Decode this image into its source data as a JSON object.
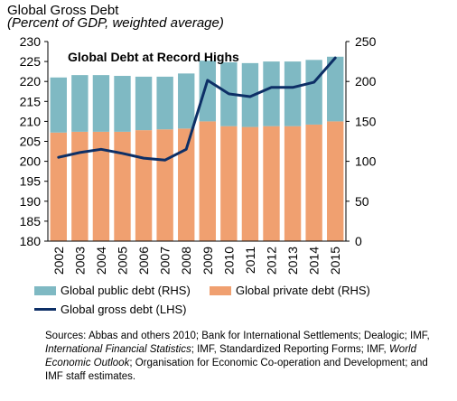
{
  "header": {
    "title": "Global Gross Debt",
    "subtitle": "(Percent of GDP, weighted average)"
  },
  "chart_data": {
    "type": "bar",
    "title": "Global Debt at Record Highs",
    "categories": [
      "2002",
      "2003",
      "2004",
      "2005",
      "2006",
      "2007",
      "2008",
      "2009",
      "2010",
      "2011",
      "2012",
      "2013",
      "2014",
      "2015"
    ],
    "axes": {
      "left": {
        "min": 180,
        "max": 230,
        "step": 5,
        "ticks": [
          "180",
          "185",
          "190",
          "195",
          "200",
          "205",
          "210",
          "215",
          "220",
          "225",
          "230"
        ]
      },
      "right": {
        "min": 0,
        "max": 250,
        "step": 50,
        "ticks": [
          "0",
          "50",
          "100",
          "150",
          "200",
          "250"
        ]
      }
    },
    "series": [
      {
        "name": "Global private debt (RHS)",
        "type": "bar",
        "axis": "right",
        "stacked": true,
        "color": "#f0a070",
        "values": [
          136,
          137,
          137,
          137,
          139,
          140,
          141,
          150,
          144,
          143,
          144,
          144,
          146,
          150
        ]
      },
      {
        "name": "Global public debt (RHS)",
        "type": "bar",
        "axis": "right",
        "stacked": true,
        "color": "#7fb9c3",
        "values": [
          69,
          71,
          71,
          70,
          67,
          66,
          69,
          76,
          80,
          80,
          81,
          81,
          81,
          81
        ]
      },
      {
        "name": "Global gross debt (LHS)",
        "type": "line",
        "axis": "left",
        "color": "#0d2f66",
        "values": [
          201.0,
          202.2,
          203.0,
          202.0,
          200.8,
          200.3,
          203.0,
          220.3,
          216.9,
          216.2,
          218.5,
          218.5,
          219.8,
          225.9
        ]
      }
    ],
    "grid": false,
    "legend_position": "bottom"
  },
  "legend": {
    "public": "Global public debt (RHS)",
    "private": "Global private debt (RHS)",
    "gross": "Global gross debt (LHS)"
  },
  "sources": {
    "prefix": "Sources: Abbas and others 2010; Bank for International Settlements; Dealogic; IMF, ",
    "ifs": "International Financial Statistics",
    "middle": "; IMF, Standardized Reporting Forms; IMF, ",
    "weo": "World Economic Outlook",
    "suffix": "; Organisation for Economic Co-operation and Development; and IMF staff estimates."
  }
}
